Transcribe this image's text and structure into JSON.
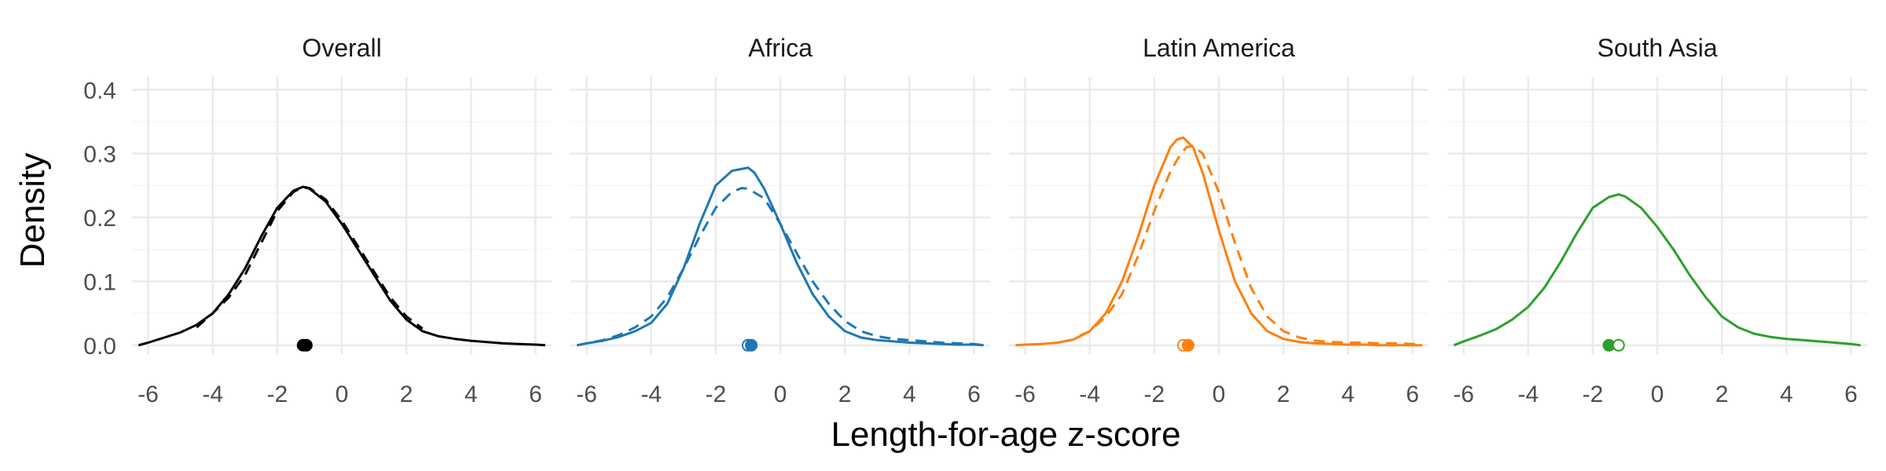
{
  "chart_data": {
    "type": "line",
    "xlabel": "Length-for-age z-score",
    "ylabel": "Density",
    "xlim": [
      -6.5,
      6.5
    ],
    "ylim": [
      -0.015,
      0.42
    ],
    "x_ticks": [
      -6,
      -4,
      -2,
      0,
      2,
      4,
      6
    ],
    "y_ticks": [
      0.0,
      0.1,
      0.2,
      0.3,
      0.4
    ],
    "y_tick_labels": [
      "0.0",
      "0.1",
      "0.2",
      "0.3",
      "0.4"
    ],
    "grid": true,
    "legend": "none",
    "panels": [
      {
        "title": "Overall",
        "color": "#000000",
        "solid": {
          "x": [
            -6.3,
            -6,
            -5.5,
            -5,
            -4.5,
            -4,
            -3.5,
            -3,
            -2.5,
            -2,
            -1.5,
            -1.2,
            -1,
            -0.5,
            0,
            0.5,
            1,
            1.5,
            2,
            2.5,
            3,
            3.5,
            4,
            4.5,
            5,
            5.5,
            6,
            6.3
          ],
          "y": [
            0.0,
            0.004,
            0.012,
            0.02,
            0.032,
            0.05,
            0.08,
            0.12,
            0.17,
            0.215,
            0.242,
            0.248,
            0.245,
            0.225,
            0.19,
            0.15,
            0.11,
            0.07,
            0.04,
            0.022,
            0.014,
            0.01,
            0.007,
            0.005,
            0.003,
            0.002,
            0.001,
            0.0
          ]
        },
        "dashed": {
          "x": [
            -4.5,
            -4,
            -3.5,
            -3,
            -2.5,
            -2,
            -1.5,
            -1.2,
            -1,
            -0.5,
            0,
            0.5,
            1,
            1.5,
            2,
            2.5
          ],
          "y": [
            0.028,
            0.05,
            0.075,
            0.11,
            0.16,
            0.21,
            0.24,
            0.248,
            0.246,
            0.228,
            0.195,
            0.155,
            0.115,
            0.075,
            0.045,
            0.026
          ]
        },
        "points": [
          {
            "x": -1.2,
            "filled": true
          },
          {
            "x": -1.1,
            "filled": true
          }
        ]
      },
      {
        "title": "Africa",
        "color": "#1f77b4",
        "solid": {
          "x": [
            -6.3,
            -6,
            -5.5,
            -5,
            -4.5,
            -4,
            -3.5,
            -3,
            -2.5,
            -2,
            -1.5,
            -1,
            -0.8,
            -0.5,
            0,
            0.5,
            1,
            1.5,
            2,
            2.5,
            3,
            3.5,
            4,
            4.5,
            5,
            5.5,
            6,
            6.3
          ],
          "y": [
            0.0,
            0.003,
            0.007,
            0.013,
            0.022,
            0.035,
            0.065,
            0.12,
            0.19,
            0.25,
            0.273,
            0.278,
            0.27,
            0.245,
            0.19,
            0.13,
            0.08,
            0.045,
            0.022,
            0.012,
            0.008,
            0.006,
            0.004,
            0.003,
            0.002,
            0.001,
            0.001,
            0.0
          ]
        },
        "dashed": {
          "x": [
            -6.3,
            -6,
            -5.5,
            -5,
            -4.5,
            -4,
            -3.5,
            -3,
            -2.5,
            -2,
            -1.5,
            -1.2,
            -1,
            -0.5,
            0,
            0.5,
            1,
            1.5,
            2,
            2.5,
            3,
            3.5,
            4,
            4.5,
            5,
            5.5,
            6,
            6.3
          ],
          "y": [
            0.0,
            0.003,
            0.008,
            0.016,
            0.028,
            0.045,
            0.075,
            0.12,
            0.17,
            0.215,
            0.24,
            0.246,
            0.245,
            0.23,
            0.19,
            0.145,
            0.1,
            0.065,
            0.038,
            0.022,
            0.014,
            0.01,
            0.008,
            0.006,
            0.004,
            0.003,
            0.002,
            0.0
          ]
        },
        "points": [
          {
            "x": -1.0,
            "filled": false
          },
          {
            "x": -0.9,
            "filled": true
          }
        ]
      },
      {
        "title": "Latin America",
        "color": "#ff7f0e",
        "solid": {
          "x": [
            -6.3,
            -6,
            -5.5,
            -5,
            -4.5,
            -4,
            -3.5,
            -3,
            -2.5,
            -2,
            -1.5,
            -1.3,
            -1.1,
            -0.8,
            -0.5,
            0,
            0.5,
            1,
            1.5,
            2,
            2.5,
            3,
            3.5,
            4,
            4.5,
            5,
            5.5,
            6,
            6.3
          ],
          "y": [
            0.0,
            0.001,
            0.002,
            0.004,
            0.009,
            0.022,
            0.05,
            0.1,
            0.17,
            0.25,
            0.31,
            0.322,
            0.325,
            0.31,
            0.27,
            0.18,
            0.1,
            0.05,
            0.022,
            0.01,
            0.005,
            0.003,
            0.002,
            0.001,
            0.001,
            0.0,
            0.0,
            0.0,
            0.0
          ]
        },
        "dashed": {
          "x": [
            -4.3,
            -4,
            -3.5,
            -3,
            -2.5,
            -2,
            -1.5,
            -1.2,
            -1,
            -0.8,
            -0.5,
            0,
            0.5,
            1,
            1.5,
            2,
            2.5,
            3,
            3.5,
            4,
            4.5,
            5,
            5.5,
            6,
            6.3
          ],
          "y": [
            0.015,
            0.022,
            0.045,
            0.08,
            0.14,
            0.21,
            0.272,
            0.298,
            0.31,
            0.312,
            0.3,
            0.24,
            0.16,
            0.09,
            0.045,
            0.022,
            0.012,
            0.007,
            0.005,
            0.004,
            0.004,
            0.003,
            0.003,
            0.002,
            0.002
          ]
        },
        "points": [
          {
            "x": -1.1,
            "filled": false
          },
          {
            "x": -0.95,
            "filled": true
          }
        ]
      },
      {
        "title": "South Asia",
        "color": "#2ca02c",
        "solid": {
          "x": [
            -6.3,
            -6,
            -5.5,
            -5,
            -4.5,
            -4,
            -3.5,
            -3,
            -2.5,
            -2,
            -1.5,
            -1.2,
            -1,
            -0.5,
            0,
            0.5,
            1,
            1.5,
            2,
            2.5,
            3,
            3.5,
            4,
            4.5,
            5,
            5.5,
            6,
            6.3
          ],
          "y": [
            0.0,
            0.006,
            0.015,
            0.025,
            0.04,
            0.06,
            0.09,
            0.13,
            0.175,
            0.215,
            0.232,
            0.236,
            0.233,
            0.215,
            0.185,
            0.15,
            0.11,
            0.075,
            0.045,
            0.028,
            0.018,
            0.013,
            0.01,
            0.008,
            0.006,
            0.004,
            0.002,
            0.0
          ]
        },
        "dashed": {
          "x": [],
          "y": []
        },
        "points": [
          {
            "x": -1.5,
            "filled": true
          },
          {
            "x": -1.2,
            "filled": false
          }
        ]
      }
    ]
  }
}
